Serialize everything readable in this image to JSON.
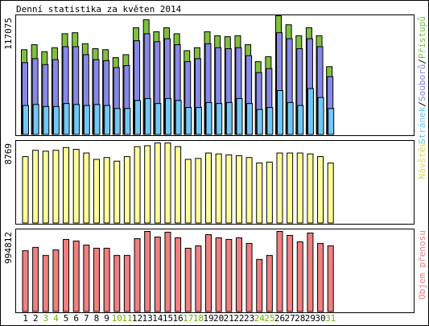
{
  "chart_data": {
    "type": "bar",
    "title": "Denní statistika za květen 2014",
    "categories": [
      "1",
      "2",
      "3",
      "4",
      "5",
      "6",
      "7",
      "8",
      "9",
      "10",
      "11",
      "12",
      "13",
      "14",
      "15",
      "16",
      "17",
      "18",
      "19",
      "20",
      "21",
      "22",
      "23",
      "24",
      "25",
      "26",
      "27",
      "28",
      "29",
      "30",
      "31"
    ],
    "weekend_days": [
      "3",
      "4",
      "10",
      "11",
      "17",
      "18",
      "24",
      "25",
      "31"
    ],
    "panels": [
      {
        "id": "access",
        "max_label": "117075",
        "ymax": 117075,
        "legend_parts": [
          {
            "text": "Stránek",
            "color": "#66c0f0"
          },
          {
            "text": "/",
            "color": "#000000"
          },
          {
            "text": "Souborů",
            "color": "#8080e0"
          },
          {
            "text": "/",
            "color": "#000000"
          },
          {
            "text": "Přístupů",
            "color": "#70c040"
          }
        ],
        "series": [
          {
            "name": "Přístupů",
            "color": "#80c040",
            "values": [
              85000,
              90000,
              83000,
              87000,
              101000,
              102000,
              91000,
              86000,
              85000,
              77000,
              80000,
              107000,
              115000,
              103000,
              107000,
              101000,
              84000,
              87000,
              103000,
              99000,
              98000,
              99000,
              90000,
              73000,
              78000,
              119000,
              110000,
              99000,
              107000,
              99000,
              68000
            ]
          },
          {
            "name": "Souborů",
            "color": "#8888e8",
            "values": [
              72000,
              76000,
              70000,
              75000,
              88000,
              88000,
              80000,
              75000,
              74000,
              67000,
              69000,
              94000,
              101000,
              93000,
              96000,
              90000,
              73000,
              76000,
              91000,
              87000,
              86000,
              87000,
              79000,
              62000,
              66000,
              102000,
              96000,
              86000,
              96000,
              88000,
              58000
            ]
          },
          {
            "name": "Stránek",
            "color": "#70c8f8",
            "values": [
              29000,
              30000,
              28000,
              28000,
              31000,
              30000,
              29000,
              30000,
              29000,
              26000,
              26000,
              34000,
              36000,
              31000,
              36000,
              34000,
              27000,
              27000,
              32000,
              31000,
              32000,
              36000,
              31000,
              25000,
              27000,
              44000,
              32000,
              29000,
              46000,
              37000,
              26000
            ]
          }
        ]
      },
      {
        "id": "visits",
        "max_label": "8769",
        "ymax": 8769,
        "legend_parts": [
          {
            "text": "Návštěv",
            "color": "#d8d860"
          }
        ],
        "series": [
          {
            "name": "Návštěv",
            "color": "#ffff99",
            "values": [
              7300,
              8000,
              7900,
              8000,
              8300,
              8100,
              7700,
              7000,
              7200,
              6800,
              7300,
              8400,
              8500,
              8800,
              8800,
              8400,
              7000,
              7100,
              7700,
              7600,
              7500,
              7400,
              7200,
              6600,
              6700,
              7700,
              7700,
              7700,
              7600,
              7300,
              6600
            ]
          }
        ]
      },
      {
        "id": "traffic",
        "max_label": "994812",
        "ymax": 994812,
        "legend_parts": [
          {
            "text": "Objem přenosu",
            "color": "#e88080"
          }
        ],
        "series": [
          {
            "name": "Objem přenosu",
            "color": "#f08080",
            "values": [
              760000,
              800000,
              700000,
              770000,
              900000,
              880000,
              830000,
              790000,
              790000,
              700000,
              700000,
              910000,
              1000000,
              930000,
              990000,
              920000,
              790000,
              820000,
              960000,
              920000,
              900000,
              920000,
              850000,
              650000,
              700000,
              1000000,
              950000,
              870000,
              980000,
              850000,
              820000
            ]
          }
        ]
      }
    ]
  }
}
